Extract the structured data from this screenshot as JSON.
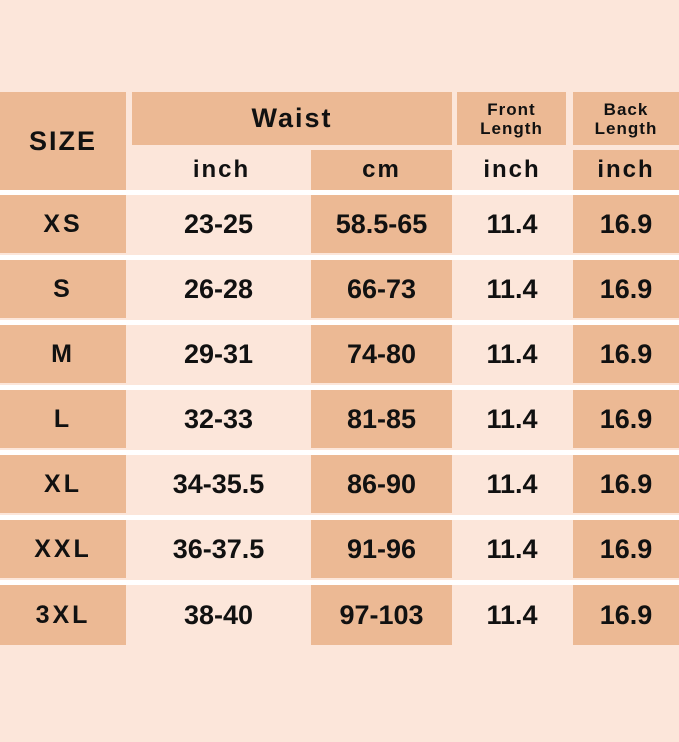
{
  "colors": {
    "dark": "#ecb994",
    "light": "#fce6da",
    "divider": "#ffffff"
  },
  "header": {
    "size": "SIZE",
    "waist": "Waist",
    "front_length": "Front Length",
    "back_length": "Back Length",
    "waist_inch": "inch",
    "waist_cm": "cm",
    "front_unit": "inch",
    "back_unit": "inch"
  },
  "rows": [
    {
      "size": "XS",
      "inch": "23-25",
      "cm": "58.5-65",
      "front": "11.4",
      "back": "16.9"
    },
    {
      "size": "S",
      "inch": "26-28",
      "cm": "66-73",
      "front": "11.4",
      "back": "16.9"
    },
    {
      "size": "M",
      "inch": "29-31",
      "cm": "74-80",
      "front": "11.4",
      "back": "16.9"
    },
    {
      "size": "L",
      "inch": "32-33",
      "cm": "81-85",
      "front": "11.4",
      "back": "16.9"
    },
    {
      "size": "XL",
      "inch": "34-35.5",
      "cm": "86-90",
      "front": "11.4",
      "back": "16.9"
    },
    {
      "size": "XXL",
      "inch": "36-37.5",
      "cm": "91-96",
      "front": "11.4",
      "back": "16.9"
    },
    {
      "size": "3XL",
      "inch": "38-40",
      "cm": "97-103",
      "front": "11.4",
      "back": "16.9"
    }
  ]
}
